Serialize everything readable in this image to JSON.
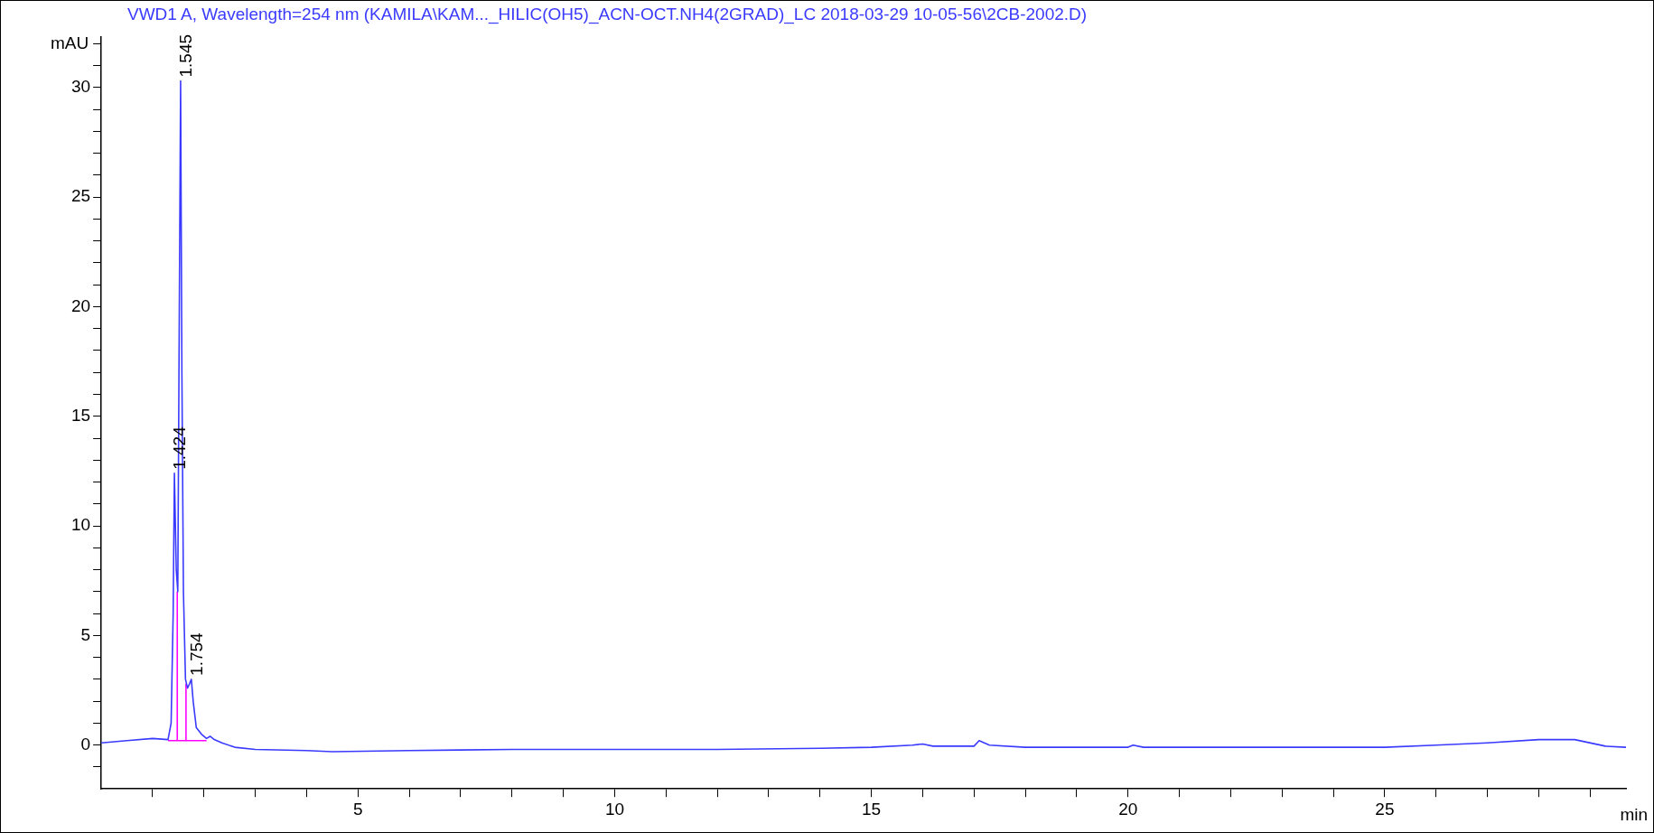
{
  "chart_data": {
    "type": "line",
    "title": "VWD1 A, Wavelength=254 nm (KAMILA\\KAM..._HILIC(OH5)_ACN-OCT.NH4(2GRAD)_LC 2018-03-29 10-05-56\\2CB-2002.D)",
    "xlabel": "min",
    "ylabel": "mAU",
    "xlim": [
      0,
      29.7
    ],
    "ylim": [
      -2,
      32.3
    ],
    "xticks": [
      {
        "value": 1,
        "label": null
      },
      {
        "value": 2,
        "label": null
      },
      {
        "value": 3,
        "label": null
      },
      {
        "value": 4,
        "label": null
      },
      5,
      {
        "value": 6,
        "label": null
      },
      {
        "value": 7,
        "label": null
      },
      {
        "value": 8,
        "label": null
      },
      {
        "value": 9,
        "label": null
      },
      10,
      {
        "value": 11,
        "label": null
      },
      {
        "value": 12,
        "label": null
      },
      {
        "value": 13,
        "label": null
      },
      {
        "value": 14,
        "label": null
      },
      15,
      {
        "value": 16,
        "label": null
      },
      {
        "value": 17,
        "label": null
      },
      {
        "value": 18,
        "label": null
      },
      {
        "value": 19,
        "label": null
      },
      20,
      {
        "value": 21,
        "label": null
      },
      {
        "value": 22,
        "label": null
      },
      {
        "value": 23,
        "label": null
      },
      {
        "value": 24,
        "label": null
      },
      25,
      {
        "value": 26,
        "label": null
      },
      {
        "value": 27,
        "label": null
      },
      {
        "value": 28,
        "label": null
      },
      {
        "value": 29,
        "label": null
      }
    ],
    "yticks": [
      {
        "value": -1,
        "label": null
      },
      0,
      {
        "value": 1,
        "label": null
      },
      {
        "value": 2,
        "label": null
      },
      {
        "value": 3,
        "label": null
      },
      {
        "value": 4,
        "label": null
      },
      5,
      {
        "value": 6,
        "label": null
      },
      {
        "value": 7,
        "label": null
      },
      {
        "value": 8,
        "label": null
      },
      {
        "value": 9,
        "label": null
      },
      10,
      {
        "value": 11,
        "label": null
      },
      {
        "value": 12,
        "label": null
      },
      {
        "value": 13,
        "label": null
      },
      {
        "value": 14,
        "label": null
      },
      15,
      {
        "value": 16,
        "label": null
      },
      {
        "value": 17,
        "label": null
      },
      {
        "value": 18,
        "label": null
      },
      {
        "value": 19,
        "label": null
      },
      20,
      {
        "value": 21,
        "label": null
      },
      {
        "value": 22,
        "label": null
      },
      {
        "value": 23,
        "label": null
      },
      {
        "value": 24,
        "label": null
      },
      25,
      {
        "value": 26,
        "label": null
      },
      {
        "value": 27,
        "label": null
      },
      {
        "value": 28,
        "label": null
      },
      {
        "value": 29,
        "label": null
      },
      30,
      {
        "value": 31,
        "label": null
      },
      {
        "value": 32,
        "label": null
      }
    ],
    "grid": false,
    "legend": false,
    "marker": "none",
    "series": [
      {
        "color": "#3a3aff",
        "x": [
          0,
          0.5,
          1,
          1.3,
          1.36,
          1.4,
          1.424,
          1.46,
          1.49,
          1.52,
          1.545,
          1.57,
          1.6,
          1.64,
          1.68,
          1.72,
          1.754,
          1.79,
          1.85,
          1.95,
          2.05,
          2.12,
          2.2,
          2.35,
          2.6,
          3,
          4,
          4.5,
          6,
          8,
          10,
          12,
          14,
          15,
          15.8,
          16,
          16.2,
          17,
          17.1,
          17.3,
          18,
          20,
          20.1,
          20.3,
          22,
          25,
          26,
          27,
          28,
          28.7,
          29.3,
          29.7
        ],
        "values": [
          0.1,
          0.2,
          0.3,
          0.25,
          1,
          6,
          12.4,
          8,
          7,
          20,
          30.3,
          17,
          7,
          3,
          2.6,
          2.8,
          3.0,
          2,
          0.8,
          0.5,
          0.3,
          0.4,
          0.25,
          0.1,
          -0.1,
          -0.2,
          -0.25,
          -0.3,
          -0.25,
          -0.2,
          -0.2,
          -0.2,
          -0.15,
          -0.1,
          0,
          0.05,
          -0.05,
          -0.05,
          0.2,
          0,
          -0.1,
          -0.1,
          0.0,
          -0.1,
          -0.1,
          -0.1,
          0,
          0.1,
          0.25,
          0.25,
          -0.05,
          -0.1
        ]
      },
      {
        "color": "#ff00ff",
        "x": [
          1.3,
          2.05
        ],
        "values": [
          0.2,
          0.2
        ]
      },
      {
        "color": "#ff00ff",
        "x": [
          1.48,
          1.48
        ],
        "values": [
          0.2,
          7
        ]
      },
      {
        "color": "#ff00ff",
        "x": [
          1.65,
          1.65
        ],
        "values": [
          0.2,
          2.8
        ]
      }
    ],
    "annotations": [
      {
        "text": "1.545",
        "x": 1.545,
        "y": 30.3
      },
      {
        "text": "1.424",
        "x": 1.424,
        "y": 12.4
      },
      {
        "text": "1.754",
        "x": 1.754,
        "y": 3.0
      }
    ]
  }
}
